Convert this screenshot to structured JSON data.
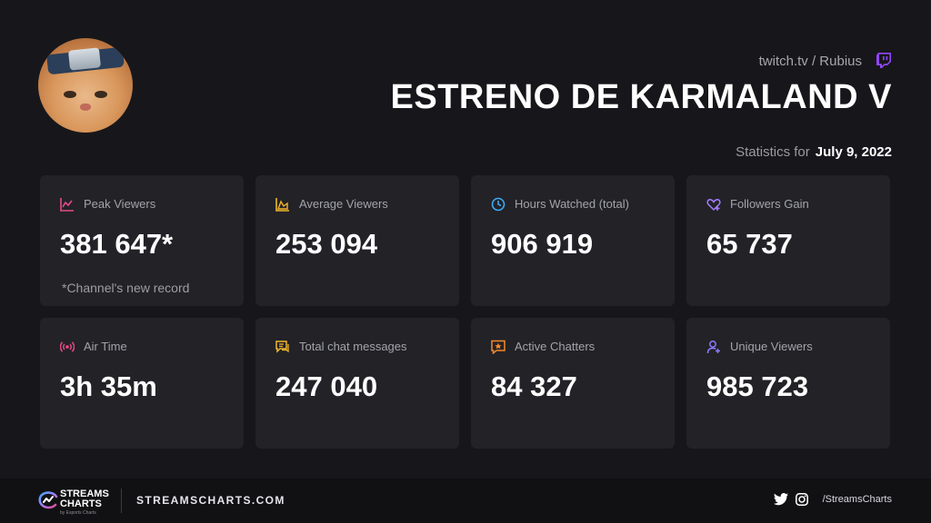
{
  "header": {
    "source": "twitch.tv / Rubius",
    "title": "ESTRENO DE KARMALAND V",
    "stats_for_label": "Statistics for",
    "stats_date": "July 9, 2022",
    "accent": "#9146ff"
  },
  "avatar": {
    "icon": "streamer-avatar"
  },
  "stats": [
    {
      "label": "Peak Viewers",
      "value": "381 647*",
      "note": "*Channel's new record",
      "icon": "chart-line-icon",
      "color": "#e64a8a"
    },
    {
      "label": "Average Viewers",
      "value": "253 094",
      "icon": "chart-area-icon",
      "color": "#f2b62a"
    },
    {
      "label": "Hours Watched (total)",
      "value": "906 919",
      "icon": "clock-icon",
      "color": "#3fa9f5"
    },
    {
      "label": "Followers Gain",
      "value": "65 737",
      "icon": "heart-plus-icon",
      "color": "#a57cff"
    },
    {
      "label": "Air Time",
      "value": "3h 35m",
      "icon": "broadcast-icon",
      "color": "#e64a8a"
    },
    {
      "label": "Total chat messages",
      "value": "247 040",
      "icon": "chat-icon",
      "color": "#f2b62a"
    },
    {
      "label": "Active Chatters",
      "value": "84 327",
      "icon": "star-message-icon",
      "color": "#f58a2a"
    },
    {
      "label": "Unique Viewers",
      "value": "985 723",
      "icon": "user-icon",
      "color": "#8d7cff"
    }
  ],
  "footer": {
    "logo_line1": "STREAMS",
    "logo_line2": "CHARTS",
    "logo_sub": "by Esports Charts",
    "site": "STREAMSCHARTS.COM",
    "handle": "/StreamsCharts"
  }
}
